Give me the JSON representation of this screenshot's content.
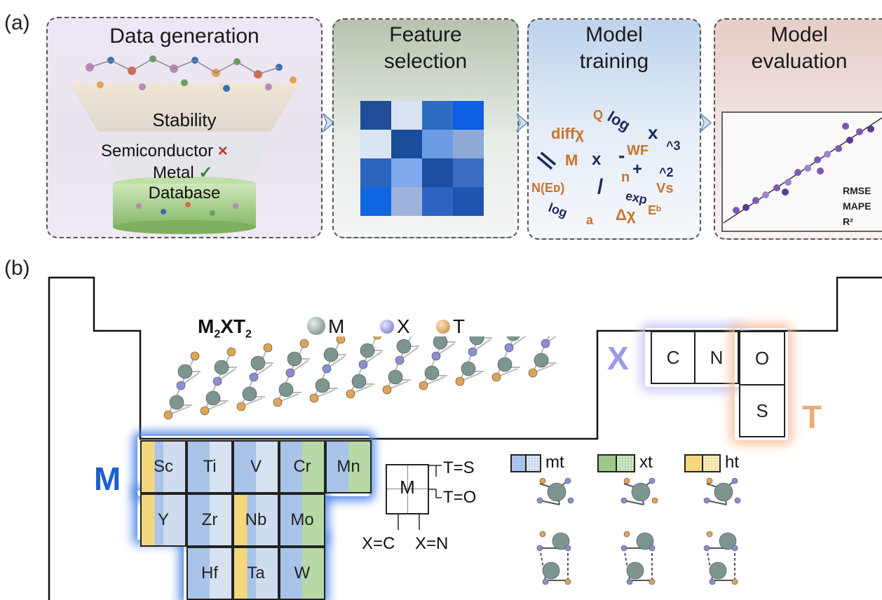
{
  "panel_a": {
    "label": "(a)",
    "boxes": [
      {
        "title": "Data generation",
        "funnel_labels": [
          "Stability",
          "Semiconductor",
          "Metal",
          "Database"
        ],
        "semiconductor_mark": "×",
        "metal_mark": "✓"
      },
      {
        "title_line1": "Feature",
        "title_line2": "selection"
      },
      {
        "title_line1": "Model",
        "title_line2": "training"
      },
      {
        "title_line1": "Model",
        "title_line2": "evaluation",
        "metrics": [
          "RMSE",
          "MAPE",
          "R²"
        ]
      }
    ],
    "heatmap": [
      [
        "#1f4e96",
        "#d9e3f2",
        "#2e6bc2",
        "#0d5ee0"
      ],
      [
        "#dbe4f3",
        "#1a4d9b",
        "#6d9ce6",
        "#8fa9d6"
      ],
      [
        "#2b66c0",
        "#7fa9ec",
        "#1c4fa1",
        "#3a6cc4"
      ],
      [
        "#1066e0",
        "#9db3dc",
        "#2f63c4",
        "#1f55b0"
      ]
    ],
    "features": [
      {
        "t": "Q",
        "c": "o"
      },
      {
        "t": "log",
        "c": "b"
      },
      {
        "t": "x",
        "c": "b"
      },
      {
        "t": "diffχ",
        "c": "o"
      },
      {
        "t": "^3",
        "c": "b"
      },
      {
        "t": "WF",
        "c": "o"
      },
      {
        "t": "-",
        "c": "b"
      },
      {
        "t": "||",
        "c": "b"
      },
      {
        "t": "M",
        "c": "o"
      },
      {
        "t": "x",
        "c": "b"
      },
      {
        "t": "+",
        "c": "b"
      },
      {
        "t": "n",
        "c": "o"
      },
      {
        "t": "^2",
        "c": "b"
      },
      {
        "t": "N(Eᴅ)",
        "c": "o"
      },
      {
        "t": "/",
        "c": "b"
      },
      {
        "t": "Vs",
        "c": "o"
      },
      {
        "t": "exp",
        "c": "b"
      },
      {
        "t": "log",
        "c": "b"
      },
      {
        "t": "a",
        "c": "o"
      },
      {
        "t": "Δχ",
        "c": "o"
      },
      {
        "t": "Eᵇ",
        "c": "o"
      }
    ]
  },
  "panel_b": {
    "label": "(b)",
    "formula_main": "M",
    "formula_sub1": "2",
    "formula_mid": "XT",
    "formula_sub2": "2",
    "legend_atoms": [
      "M",
      "X",
      "T"
    ],
    "x_label": "X",
    "t_label": "T",
    "m_label": "M",
    "x_elements": [
      "C",
      "N"
    ],
    "t_elements": [
      "O",
      "S"
    ],
    "m_elements_row1": [
      "Sc",
      "Ti",
      "V",
      "Cr",
      "Mn"
    ],
    "m_elements_row2": [
      "Y",
      "Zr",
      "Nb",
      "Mo"
    ],
    "m_elements_row3": [
      "Hf",
      "Ta",
      "W"
    ],
    "cell_key": {
      "center": "M",
      "t_top": "T=S",
      "t_bottom": "T=O",
      "x_left": "X=C",
      "x_right": "X=N"
    },
    "site_legend": [
      "mt",
      "xt",
      "ht"
    ],
    "colors": {
      "mt": "#a9c4e8",
      "xt": "#9cc98a",
      "ht": "#f5d77e",
      "M_atom": "#7d9591",
      "X_atom": "#8a8fd4",
      "T_atom": "#e0a456",
      "accent_blue": "#1d5fd0",
      "accent_orange": "#f0a878"
    }
  }
}
